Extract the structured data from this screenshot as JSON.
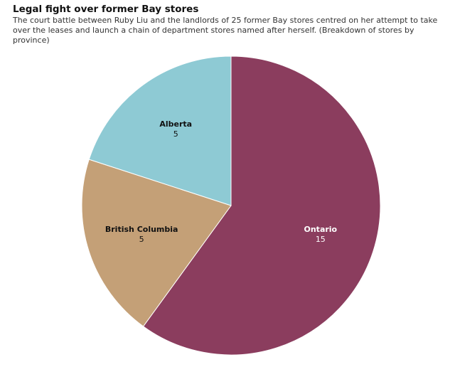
{
  "chart_data": {
    "type": "pie",
    "title": "Legal fight over former Bay stores",
    "subtitle": "The court battle between Ruby Liu and the landlords of 25 former Bay stores centred on her attempt to take over the leases and launch a chain of department stores named after herself. (Breakdown of stores by province)",
    "categories": [
      "Ontario",
      "British Columbia",
      "Alberta"
    ],
    "values": [
      15,
      5,
      5
    ],
    "colors": [
      "#8b3d5e",
      "#c4a077",
      "#8ecad4"
    ]
  }
}
